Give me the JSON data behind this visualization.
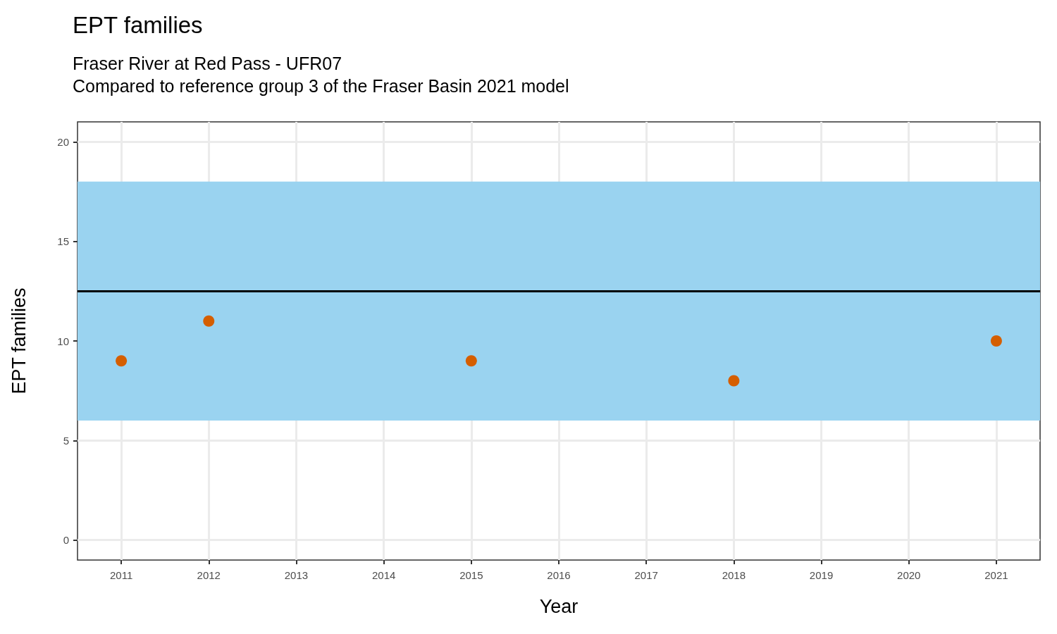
{
  "chart_data": {
    "type": "scatter",
    "title": "EPT families",
    "subtitle": "Fraser River at Red Pass - UFR07\nCompared to reference group 3 of the Fraser Basin 2021 model",
    "xlabel": "Year",
    "ylabel": "EPT families",
    "x": [
      2011,
      2012,
      2015,
      2018,
      2021
    ],
    "series": [
      {
        "color": "#d55e00",
        "values": [
          9,
          11,
          9,
          8,
          10
        ]
      }
    ],
    "xlim": [
      2010.5,
      2021.5
    ],
    "xticks": [
      2011,
      2012,
      2013,
      2014,
      2015,
      2016,
      2017,
      2018,
      2019,
      2020,
      2021
    ],
    "ylim": [
      -1,
      21
    ],
    "yticks": [
      0,
      5,
      10,
      15,
      20
    ],
    "bands": [
      {
        "axis": "y",
        "from": 6,
        "to": 18,
        "color": "#9ad3f0"
      }
    ],
    "ref_lines": [
      {
        "axis": "y",
        "value": 12.5,
        "color": "#000000",
        "line_style": "solid"
      }
    ],
    "grid": true,
    "marker": "circle"
  }
}
